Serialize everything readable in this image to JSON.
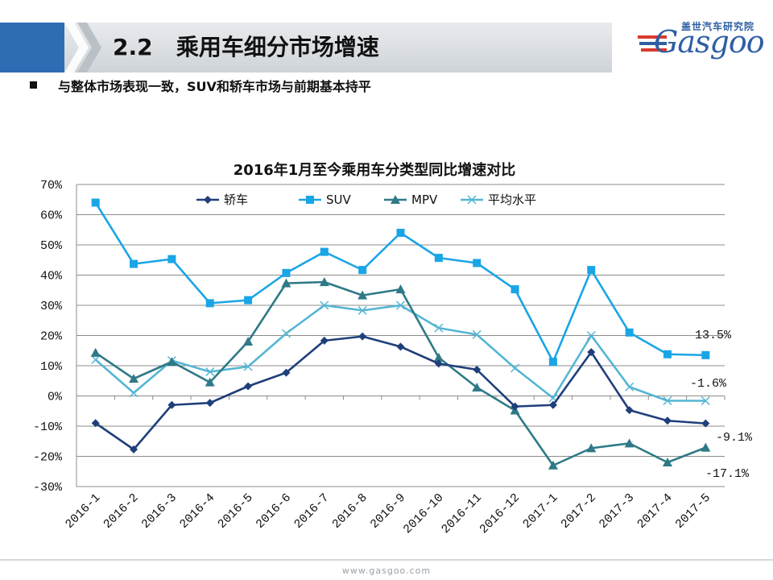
{
  "header": {
    "title": "2.2   乘用车细分市场增速",
    "logo_cn": "盖世汽车研究院",
    "logo_text": "Gasgoo"
  },
  "bullet": {
    "text": "与整体市场表现一致，SUV和轿车市场与前期基本持平"
  },
  "footer": {
    "url": "www.gasgoo.com"
  },
  "colors": {
    "title_blue": "#2e6db3",
    "sedan": "#1f3f7a",
    "suv": "#19a5e6",
    "mpv": "#2e7a86",
    "average": "#54b6d3"
  },
  "chart_data": {
    "type": "line",
    "title": "2016年1月至今乘用车分类型同比增速对比",
    "xlabel": "",
    "ylabel": "",
    "ylim": [
      -30,
      70
    ],
    "yticks": [
      "70%",
      "60%",
      "50%",
      "40%",
      "30%",
      "20%",
      "10%",
      "0%",
      "-10%",
      "-20%",
      "-30%"
    ],
    "grid": true,
    "legend_position": "top",
    "categories": [
      "2016-1",
      "2016-2",
      "2016-3",
      "2016-4",
      "2016-5",
      "2016-6",
      "2016-7",
      "2016-8",
      "2016-9",
      "2016-10",
      "2016-11",
      "2016-12",
      "2017-1",
      "2017-2",
      "2017-3",
      "2017-4",
      "2017-5"
    ],
    "series": [
      {
        "name": "轿车",
        "marker": "diamond",
        "color": "#1f3f7a",
        "values": [
          -9.0,
          -17.7,
          -3.0,
          -2.3,
          3.2,
          7.7,
          18.3,
          19.7,
          16.3,
          10.7,
          8.7,
          -3.5,
          -3.0,
          14.5,
          -4.7,
          -8.2,
          -9.1
        ]
      },
      {
        "name": "SUV",
        "marker": "square",
        "color": "#19a5e6",
        "values": [
          64.0,
          43.7,
          45.3,
          30.7,
          31.7,
          40.7,
          47.7,
          41.7,
          54.0,
          45.7,
          44.0,
          35.3,
          11.3,
          41.7,
          21.0,
          13.8,
          13.5
        ]
      },
      {
        "name": "MPV",
        "marker": "triangle",
        "color": "#2e7a86",
        "values": [
          14.3,
          5.7,
          11.3,
          4.5,
          18.0,
          37.3,
          37.7,
          33.3,
          35.3,
          12.7,
          2.8,
          -4.8,
          -23.0,
          -17.3,
          -15.7,
          -22.0,
          -17.1
        ]
      },
      {
        "name": "平均水平",
        "marker": "x",
        "color": "#54b6d3",
        "values": [
          12.0,
          1.0,
          11.7,
          8.0,
          9.7,
          20.7,
          30.0,
          28.3,
          30.0,
          22.5,
          20.3,
          9.2,
          -0.7,
          20.0,
          3.0,
          -1.6,
          -1.6
        ]
      }
    ],
    "end_labels": [
      "13.5%",
      "-1.6%",
      "-9.1%",
      "-17.1%"
    ]
  }
}
